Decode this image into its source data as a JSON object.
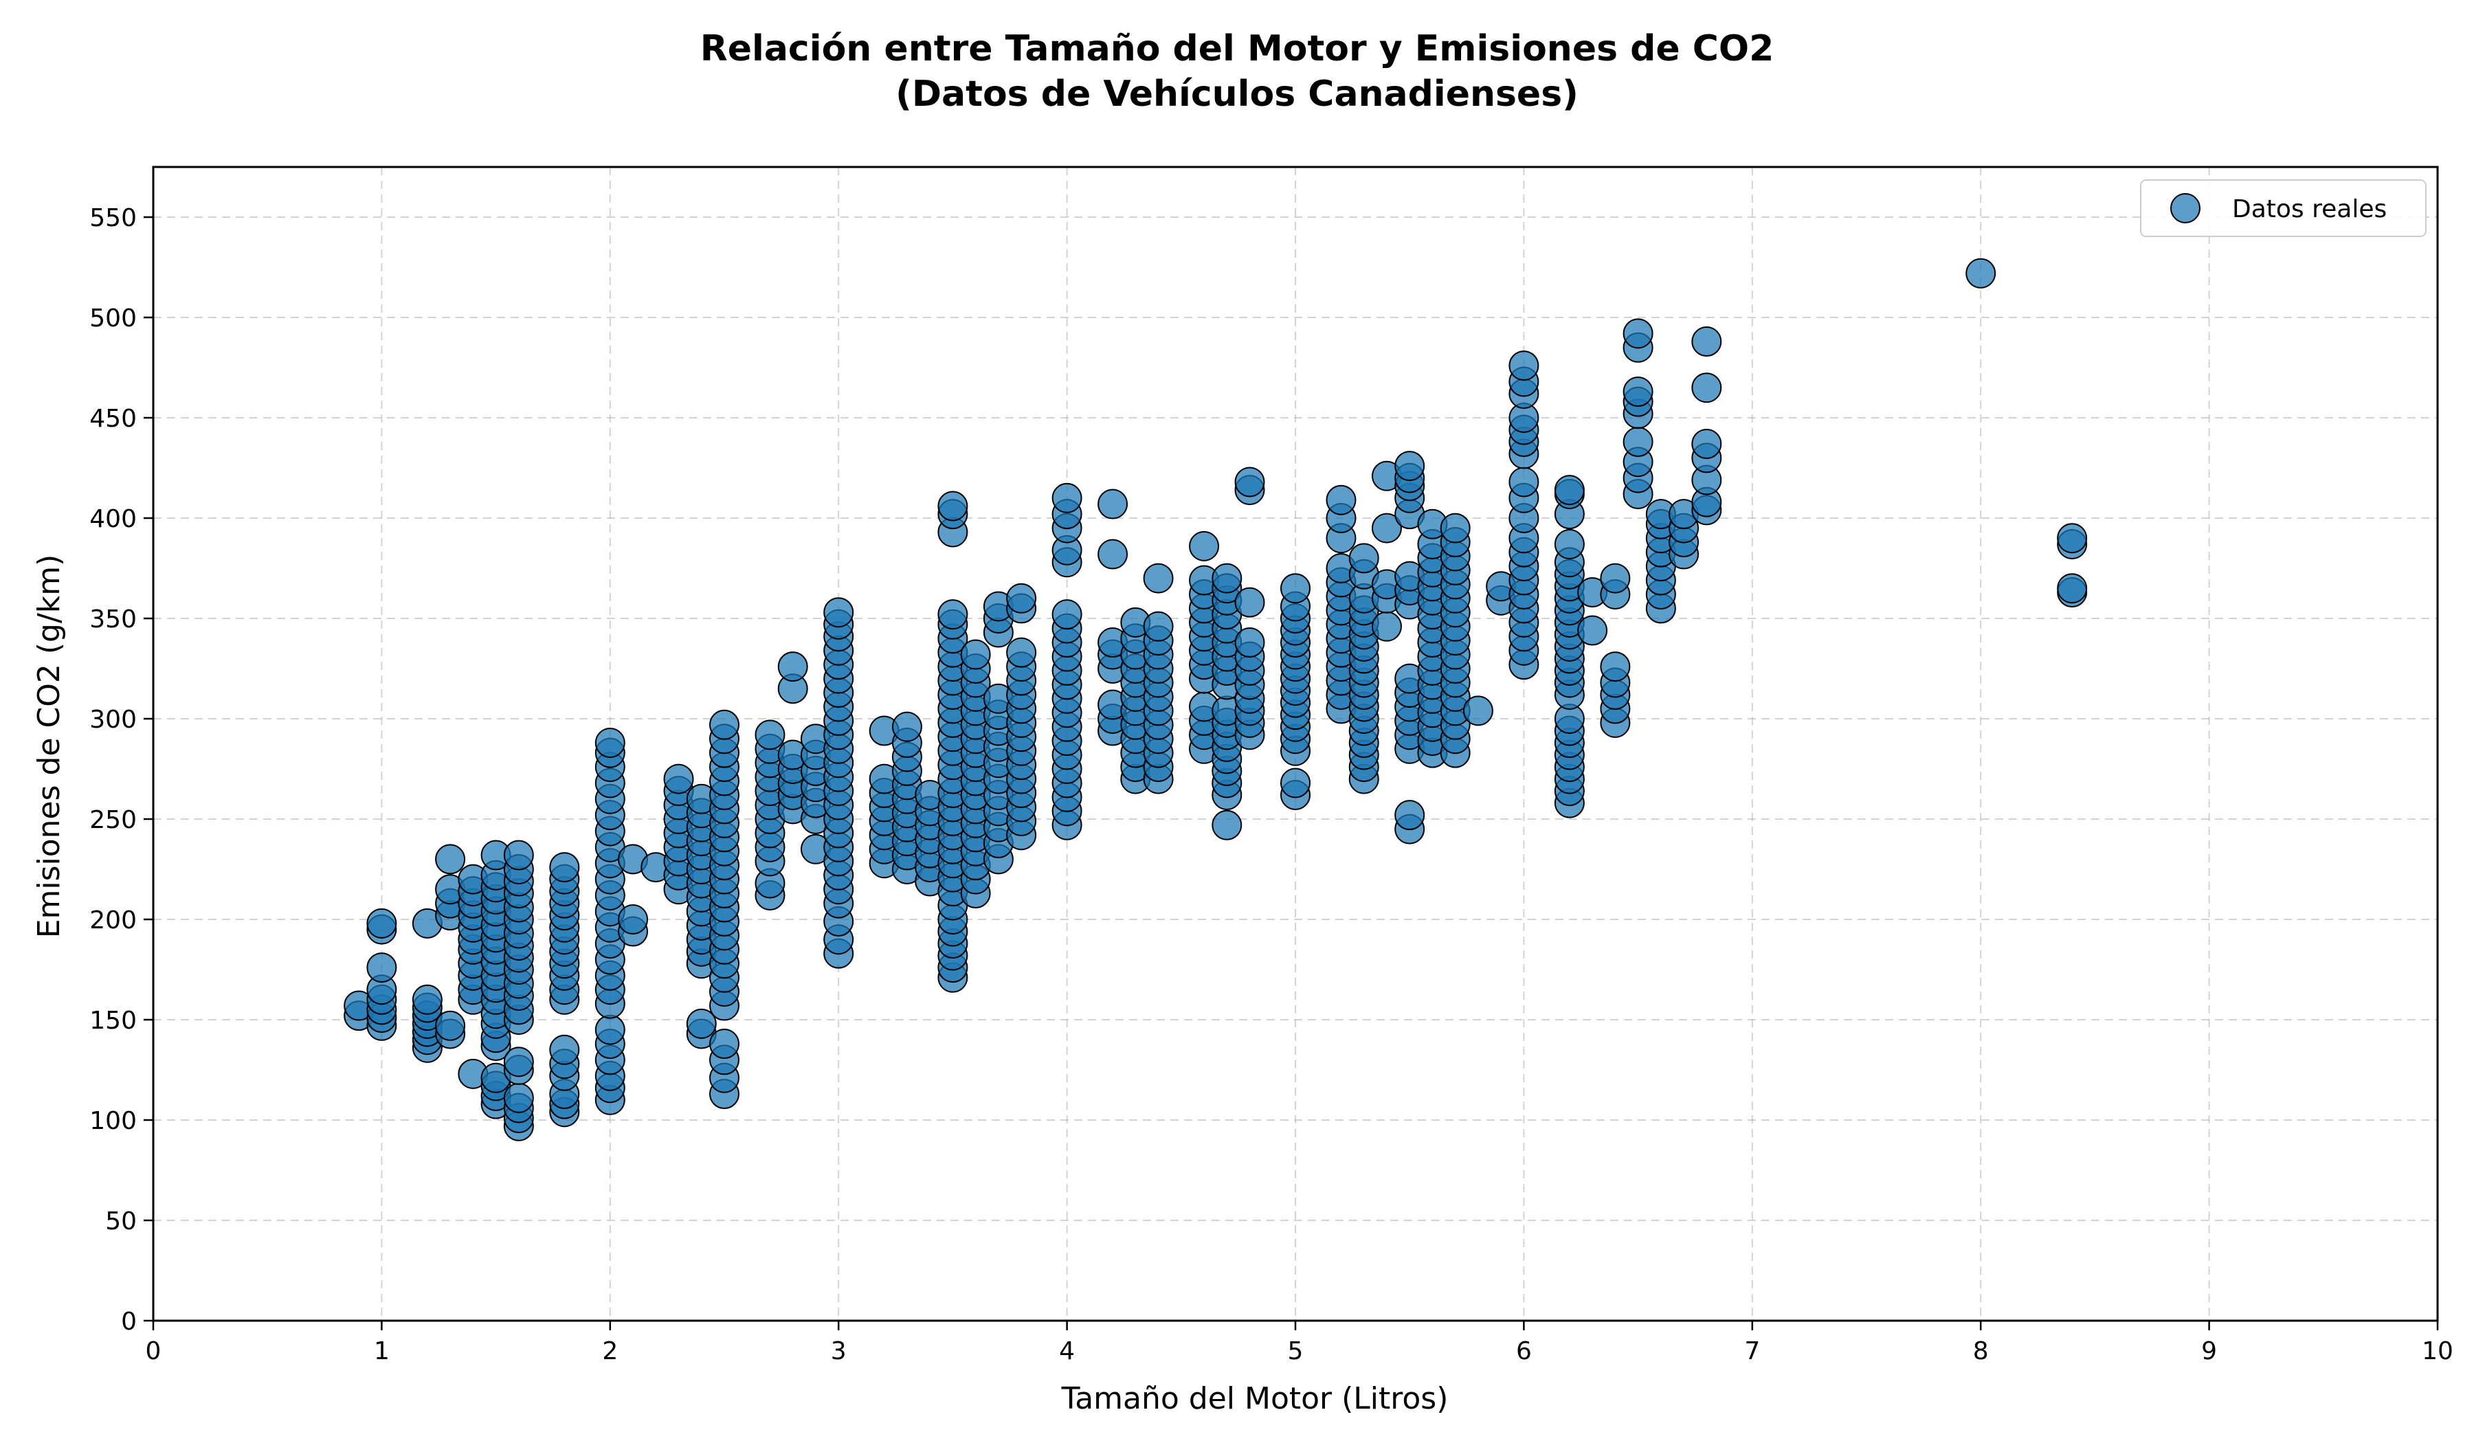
{
  "chart_data": {
    "type": "scatter",
    "title": [
      "Relación entre Tamaño del Motor y Emisiones de CO2",
      "(Datos de Vehículos Canadienses)"
    ],
    "xlabel": "Tamaño del Motor (Litros)",
    "ylabel": "Emisiones de CO2 (g/km)",
    "xlim": [
      0,
      10
    ],
    "ylim": [
      0,
      575
    ],
    "xticks": [
      0,
      1,
      2,
      3,
      4,
      5,
      6,
      7,
      8,
      9,
      10
    ],
    "yticks": [
      0,
      50,
      100,
      150,
      200,
      250,
      300,
      350,
      400,
      450,
      500,
      550
    ],
    "grid": true,
    "legend_position": "top-right",
    "series": [
      {
        "name": "Datos reales",
        "color": "#1f77b4",
        "edge_color": "#000000",
        "columns": [
          {
            "x": 0.9,
            "y": [
              152,
              157
            ]
          },
          {
            "x": 1.0,
            "y": [
              147,
              151,
              155,
              160,
              165,
              176,
              195,
              198
            ]
          },
          {
            "x": 1.2,
            "y": [
              136,
              140,
              144,
              148,
              152,
              156,
              160,
              198
            ]
          },
          {
            "x": 1.3,
            "y": [
              143,
              147,
              202,
              208,
              215,
              230
            ]
          },
          {
            "x": 1.4,
            "y": [
              123,
              160,
              165,
              172,
              178,
              185,
              190,
              196,
              202,
              208,
              214,
              220
            ]
          },
          {
            "x": 1.5,
            "y": [
              108,
              112,
              117,
              121,
              137,
              141,
              148,
              153,
              160,
              166,
              172,
              179,
              185,
              191,
              197,
              204,
              210,
              216,
              222,
              232
            ]
          },
          {
            "x": 1.6,
            "y": [
              97,
              101,
              106,
              111,
              125,
              129,
              150,
              155,
              162,
              168,
              175,
              181,
              187,
              193,
              200,
              206,
              213,
              219,
              225,
              232
            ]
          },
          {
            "x": 1.8,
            "y": [
              104,
              108,
              113,
              122,
              128,
              135,
              160,
              165,
              172,
              178,
              184,
              190,
              196,
              202,
              208,
              214,
              220,
              226
            ]
          },
          {
            "x": 2.0,
            "y": [
              110,
              116,
              122,
              130,
              138,
              145,
              158,
              165,
              172,
              180,
              188,
              196,
              204,
              212,
              220,
              228,
              236,
              244,
              252,
              260,
              268,
              276,
              283,
              288
            ]
          },
          {
            "x": 2.1,
            "y": [
              194,
              200,
              230
            ]
          },
          {
            "x": 2.2,
            "y": [
              226
            ]
          },
          {
            "x": 2.3,
            "y": [
              215,
              222,
              229,
              236,
              243,
              250,
              257,
              264,
              270
            ]
          },
          {
            "x": 2.4,
            "y": [
              143,
              148,
              178,
              184,
              190,
              197,
              204,
              211,
              218,
              225,
              232,
              239,
              246,
              253,
              260
            ]
          },
          {
            "x": 2.5,
            "y": [
              113,
              121,
              130,
              138,
              157,
              164,
              171,
              178,
              185,
              192,
              199,
              206,
              213,
              220,
              227,
              234,
              241,
              248,
              255,
              262,
              269,
              276,
              283,
              290,
              297
            ]
          },
          {
            "x": 2.7,
            "y": [
              212,
              218,
              229,
              236,
              243,
              250,
              257,
              264,
              271,
              278,
              285,
              292
            ]
          },
          {
            "x": 2.8,
            "y": [
              255,
              262,
              268,
              275,
              282,
              315,
              326
            ]
          },
          {
            "x": 2.9,
            "y": [
              235,
              250,
              258,
              266,
              274,
              282,
              290
            ]
          },
          {
            "x": 3.0,
            "y": [
              183,
              190,
              199,
              208,
              215,
              222,
              229,
              236,
              243,
              250,
              257,
              264,
              271,
              278,
              285,
              292,
              299,
              306,
              313,
              320,
              327,
              334,
              341,
              347,
              353
            ]
          },
          {
            "x": 3.2,
            "y": [
              228,
              235,
              242,
              249,
              256,
              263,
              270,
              294
            ]
          },
          {
            "x": 3.3,
            "y": [
              225,
              232,
              239,
              246,
              253,
              260,
              267,
              274,
              281,
              288,
              296
            ]
          },
          {
            "x": 3.4,
            "y": [
              219,
              226,
              233,
              240,
              247,
              254,
              262
            ]
          },
          {
            "x": 3.5,
            "y": [
              171,
              176,
              182,
              188,
              194,
              200,
              207,
              214,
              221,
              228,
              235,
              242,
              249,
              256,
              263,
              270,
              277,
              284,
              291,
              298,
              305,
              312,
              319,
              326,
              333,
              340,
              347,
              352,
              393,
              402,
              406
            ]
          },
          {
            "x": 3.6,
            "y": [
              213,
              220,
              227,
              234,
              241,
              248,
              255,
              262,
              269,
              276,
              283,
              290,
              297,
              304,
              311,
              318,
              325,
              332
            ]
          },
          {
            "x": 3.7,
            "y": [
              230,
              238,
              246,
              254,
              262,
              270,
              278,
              286,
              294,
              302,
              310,
              343,
              350,
              356
            ]
          },
          {
            "x": 3.8,
            "y": [
              242,
              249,
              256,
              263,
              270,
              277,
              284,
              291,
              298,
              305,
              312,
              319,
              326,
              333,
              355,
              360
            ]
          },
          {
            "x": 4.0,
            "y": [
              247,
              254,
              261,
              268,
              275,
              282,
              289,
              296,
              303,
              310,
              317,
              324,
              331,
              338,
              345,
              352,
              378,
              384,
              395,
              402,
              410
            ]
          },
          {
            "x": 4.2,
            "y": [
              294,
              300,
              307,
              325,
              332,
              338,
              382,
              407
            ]
          },
          {
            "x": 4.3,
            "y": [
              270,
              276,
              283,
              290,
              297,
              304,
              311,
              318,
              325,
              332,
              340,
              348
            ]
          },
          {
            "x": 4.4,
            "y": [
              270,
              276,
              283,
              290,
              297,
              304,
              311,
              318,
              325,
              332,
              339,
              346,
              370
            ]
          },
          {
            "x": 4.6,
            "y": [
              285,
              292,
              299,
              306,
              320,
              327,
              334,
              341,
              348,
              355,
              362,
              369,
              386
            ]
          },
          {
            "x": 4.7,
            "y": [
              247,
              262,
              268,
              274,
              280,
              286,
              292,
              298,
              304,
              317,
              324,
              331,
              338,
              345,
              352,
              359,
              365,
              370
            ]
          },
          {
            "x": 4.8,
            "y": [
              292,
              298,
              304,
              310,
              317,
              324,
              331,
              338,
              358,
              414,
              418
            ]
          },
          {
            "x": 5.0,
            "y": [
              262,
              268,
              284,
              290,
              296,
              302,
              308,
              314,
              320,
              326,
              332,
              338,
              344,
              350,
              356,
              365
            ]
          },
          {
            "x": 5.2,
            "y": [
              305,
              312,
              319,
              326,
              333,
              340,
              347,
              354,
              361,
              368,
              375,
              390,
              400,
              409
            ]
          },
          {
            "x": 5.3,
            "y": [
              270,
              276,
              282,
              288,
              294,
              300,
              306,
              312,
              318,
              324,
              330,
              336,
              342,
              348,
              354,
              360,
              372,
              380
            ]
          },
          {
            "x": 5.4,
            "y": [
              346,
              360,
              367,
              395,
              421
            ]
          },
          {
            "x": 5.5,
            "y": [
              245,
              252,
              285,
              292,
              299,
              306,
              313,
              320,
              357,
              364,
              371,
              402,
              410,
              416,
              420,
              426
            ]
          },
          {
            "x": 5.6,
            "y": [
              283,
              289,
              296,
              303,
              310,
              317,
              324,
              331,
              338,
              345,
              352,
              359,
              366,
              373,
              380,
              387,
              397
            ]
          },
          {
            "x": 5.7,
            "y": [
              283,
              290,
              297,
              304,
              311,
              318,
              325,
              332,
              339,
              346,
              353,
              360,
              367,
              374,
              381,
              388,
              395
            ]
          },
          {
            "x": 5.8,
            "y": [
              304
            ]
          },
          {
            "x": 5.9,
            "y": [
              359,
              366
            ]
          },
          {
            "x": 6.0,
            "y": [
              327,
              334,
              341,
              348,
              355,
              362,
              369,
              376,
              383,
              390,
              400,
              410,
              418,
              432,
              438,
              444,
              450,
              462,
              468,
              476
            ]
          },
          {
            "x": 6.2,
            "y": [
              258,
              264,
              270,
              276,
              282,
              288,
              294,
              300,
              312,
              318,
              324,
              330,
              336,
              342,
              348,
              354,
              360,
              366,
              372,
              378,
              387,
              402,
              412,
              414
            ]
          },
          {
            "x": 6.3,
            "y": [
              344,
              363
            ]
          },
          {
            "x": 6.4,
            "y": [
              298,
              305,
              312,
              318,
              326,
              362,
              370
            ]
          },
          {
            "x": 6.5,
            "y": [
              412,
              420,
              428,
              438,
              452,
              458,
              463,
              485,
              492
            ]
          },
          {
            "x": 6.6,
            "y": [
              355,
              362,
              369,
              376,
              383,
              390,
              397,
              402
            ]
          },
          {
            "x": 6.7,
            "y": [
              382,
              388,
              395,
              402
            ]
          },
          {
            "x": 6.8,
            "y": [
              404,
              408,
              419,
              430,
              437,
              465,
              488
            ]
          },
          {
            "x": 8.0,
            "y": [
              522
            ]
          },
          {
            "x": 8.4,
            "y": [
              363,
              365,
              387,
              390
            ]
          }
        ]
      }
    ]
  }
}
